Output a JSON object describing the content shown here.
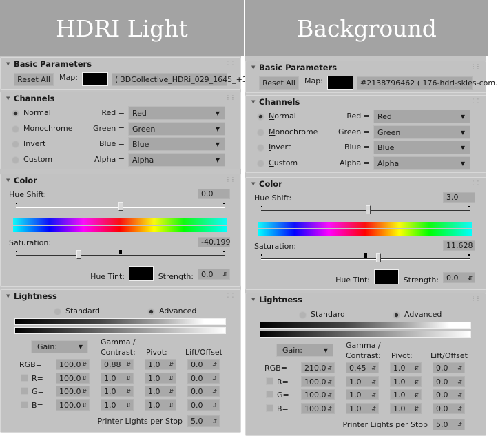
{
  "panels": [
    {
      "title": "HDRI Light",
      "basic": {
        "title": "Basic Parameters",
        "reset_label": "Reset All",
        "map_label": "Map:",
        "map_value": "( 3DCollective_HDRi_029_1645_+3",
        "map_color": "#000000"
      },
      "channels": {
        "title": "Channels",
        "modes": [
          {
            "label": "Normal",
            "selected": true
          },
          {
            "label": "Monochrome",
            "selected": false
          },
          {
            "label": "Invert",
            "selected": false
          },
          {
            "label": "Custom",
            "selected": false
          }
        ],
        "maps": [
          {
            "label": "Red =",
            "value": "Red"
          },
          {
            "label": "Green =",
            "value": "Green"
          },
          {
            "label": "Blue =",
            "value": "Blue"
          },
          {
            "label": "Alpha =",
            "value": "Alpha"
          }
        ]
      },
      "color": {
        "title": "Color",
        "hue_shift_label": "Hue Shift:",
        "hue_shift": "0.0",
        "hue_slider": 0.5,
        "saturation_label": "Saturation:",
        "saturation": "-40.199",
        "sat_slider": 0.3,
        "sat_marker": 0.5,
        "hue_tint_label": "Hue Tint:",
        "hue_tint_color": "#000000",
        "strength_label": "Strength:",
        "strength": "0.0"
      },
      "lightness": {
        "title": "Lightness",
        "modes": [
          {
            "label": "Standard",
            "selected": false
          },
          {
            "label": "Advanced",
            "selected": true
          }
        ],
        "gain_label": "Gain:",
        "col_gamma": "Gamma /",
        "col_contrast": "Contrast:",
        "col_pivot": "Pivot:",
        "col_lift": "Lift/Offset",
        "rows": [
          {
            "label": "RGB=",
            "checkbox": false,
            "gain": "100.0",
            "gamma": "0.88",
            "pivot": "1.0",
            "lift": "0.0"
          },
          {
            "label": "R=",
            "checkbox": true,
            "gain": "100.0",
            "gamma": "1.0",
            "pivot": "1.0",
            "lift": "0.0"
          },
          {
            "label": "G=",
            "checkbox": true,
            "gain": "100.0",
            "gamma": "1.0",
            "pivot": "1.0",
            "lift": "0.0"
          },
          {
            "label": "B=",
            "checkbox": true,
            "gain": "100.0",
            "gamma": "1.0",
            "pivot": "1.0",
            "lift": "0.0"
          }
        ],
        "printer_label": "Printer Lights per Stop",
        "printer_value": "5.0"
      }
    },
    {
      "title": "Background",
      "basic": {
        "title": "Basic Parameters",
        "reset_label": "Reset All",
        "map_label": "Map:",
        "map_value": "#2138796462 ( 176-hdri-skies-com.",
        "map_color": "#000000"
      },
      "channels": {
        "title": "Channels",
        "modes": [
          {
            "label": "Normal",
            "selected": true
          },
          {
            "label": "Monochrome",
            "selected": false
          },
          {
            "label": "Invert",
            "selected": false
          },
          {
            "label": "Custom",
            "selected": false
          }
        ],
        "maps": [
          {
            "label": "Red =",
            "value": "Red"
          },
          {
            "label": "Green =",
            "value": "Green"
          },
          {
            "label": "Blue =",
            "value": "Blue"
          },
          {
            "label": "Alpha =",
            "value": "Alpha"
          }
        ]
      },
      "color": {
        "title": "Color",
        "hue_shift_label": "Hue Shift:",
        "hue_shift": "3.0",
        "hue_slider": 0.51,
        "saturation_label": "Saturation:",
        "saturation": "11.628",
        "sat_slider": 0.56,
        "sat_marker": 0.5,
        "hue_tint_label": "Hue Tint:",
        "hue_tint_color": "#000000",
        "strength_label": "Strength:",
        "strength": "0.0"
      },
      "lightness": {
        "title": "Lightness",
        "modes": [
          {
            "label": "Standard",
            "selected": false
          },
          {
            "label": "Advanced",
            "selected": true
          }
        ],
        "gain_label": "Gain:",
        "col_gamma": "Gamma /",
        "col_contrast": "Contrast:",
        "col_pivot": "Pivot:",
        "col_lift": "Lift/Offset",
        "rows": [
          {
            "label": "RGB=",
            "checkbox": false,
            "gain": "210.0",
            "gamma": "0.45",
            "pivot": "1.0",
            "lift": "0.0"
          },
          {
            "label": "R=",
            "checkbox": true,
            "gain": "100.0",
            "gamma": "1.0",
            "pivot": "1.0",
            "lift": "0.0"
          },
          {
            "label": "G=",
            "checkbox": true,
            "gain": "100.0",
            "gamma": "1.0",
            "pivot": "1.0",
            "lift": "0.0"
          },
          {
            "label": "B=",
            "checkbox": true,
            "gain": "100.0",
            "gamma": "1.0",
            "pivot": "1.0",
            "lift": "0.0"
          }
        ],
        "printer_label": "Printer Lights per Stop",
        "printer_value": "5.0"
      }
    }
  ]
}
